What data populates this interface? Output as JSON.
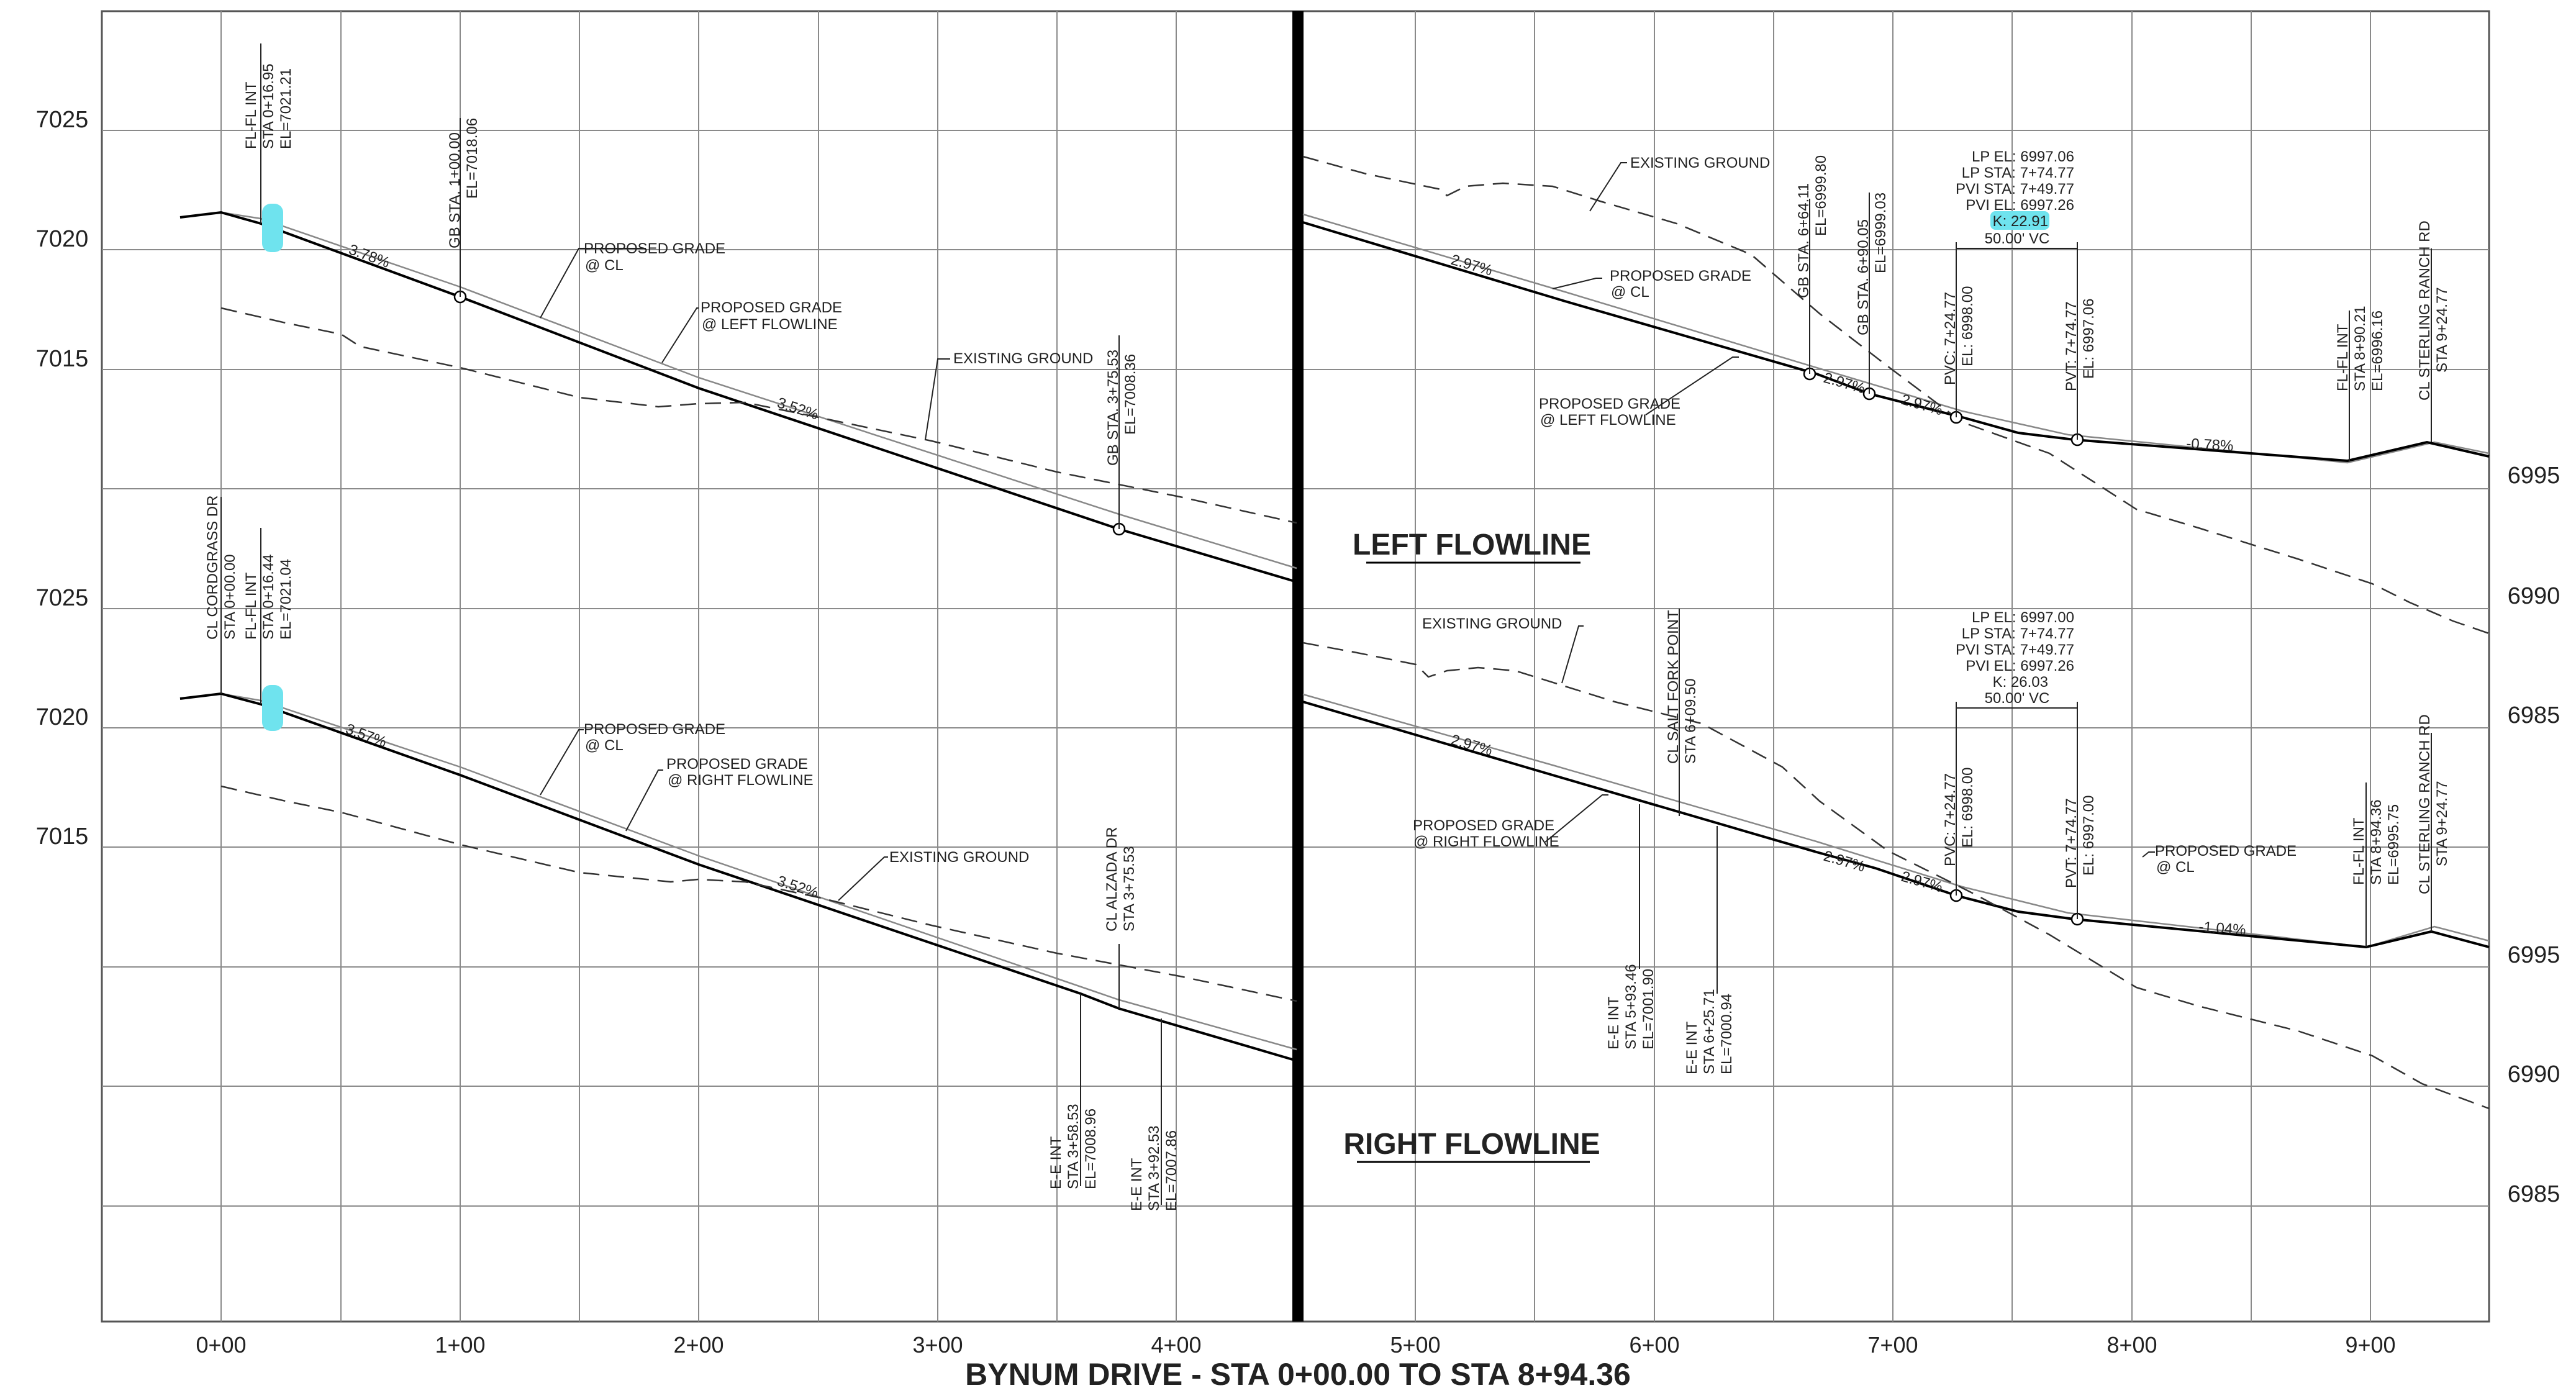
{
  "footer": {
    "title": "BYNUM DRIVE - STA 0+00.00 TO STA 8+94.36"
  },
  "axis": {
    "stations": [
      "0+00",
      "1+00",
      "2+00",
      "3+00",
      "4+00",
      "5+00",
      "6+00",
      "7+00",
      "8+00",
      "9+00"
    ],
    "left_elev_top": [
      "7025",
      "7020",
      "7015"
    ],
    "left_elev_bottom": [
      "7025",
      "7020",
      "7015"
    ],
    "right_elev": [
      "6995",
      "6990",
      "6985",
      "6995",
      "6990",
      "6985"
    ]
  },
  "panels": {
    "left_flowline_title": "LEFT FLOWLINE",
    "right_flowline_title": "RIGHT FLOWLINE"
  },
  "top_left": {
    "flfl_int": [
      "FL-FL INT",
      "STA 0+16.95",
      "EL=7021.21"
    ],
    "gb1": [
      "GB STA. 1+00.00",
      "EL=7018.06"
    ],
    "gb2": [
      "GB STA. 3+75.53",
      "EL=7008.36"
    ],
    "slope1": "3.78%",
    "slope2": "3.52%",
    "pg_cl": [
      "PROPOSED GRADE",
      "@ CL"
    ],
    "pg_left": [
      "PROPOSED GRADE",
      "@ LEFT FLOWLINE"
    ],
    "existing": "EXISTING GROUND"
  },
  "top_right": {
    "existing": "EXISTING GROUND",
    "slope1": "2.97%",
    "slope2": "2.97%",
    "slope3": "2.97%",
    "slope4": "-0.78%",
    "pg_cl": [
      "PROPOSED GRADE",
      "@ CL"
    ],
    "pg_left": [
      "PROPOSED GRADE",
      "@ LEFT FLOWLINE"
    ],
    "gb1": [
      "GB STA. 6+64.11",
      "EL=6999.80"
    ],
    "gb2": [
      "GB STA. 6+90.05",
      "EL=6999.03"
    ],
    "pvc": [
      "PVC: 7+24.77",
      "EL: 6998.00"
    ],
    "pvt": [
      "PVT: 7+74.77",
      "EL: 6997.06"
    ],
    "flfl": [
      "FL-FL INT",
      "STA 8+90.21",
      "EL=6996.16"
    ],
    "sterling": [
      "CL STERLING RANCH RD",
      "STA 9+24.77"
    ],
    "vc_info": [
      "LP EL: 6997.06",
      "LP STA: 7+74.77",
      "PVI STA: 7+49.77",
      "PVI EL: 6997.26"
    ],
    "k_value": "K: 22.91",
    "vc_len": "50.00' VC"
  },
  "bottom_left": {
    "cordgrass": [
      "CL CORDGRASS DR",
      "STA 0+00.00"
    ],
    "flfl_int": [
      "FL-FL INT",
      "STA 0+16.44",
      "EL=7021.04"
    ],
    "slope1": "3.57%",
    "slope2": "3.52%",
    "pg_cl": [
      "PROPOSED GRADE",
      "@ CL"
    ],
    "pg_right": [
      "PROPOSED GRADE",
      "@ RIGHT FLOWLINE"
    ],
    "existing": "EXISTING GROUND",
    "alzada": [
      "CL ALZADA DR",
      "STA 3+75.53"
    ],
    "ee1": [
      "E-E INT",
      "STA 3+58.53",
      "EL=7008.96"
    ],
    "ee2": [
      "E-E INT",
      "STA 3+92.53",
      "EL=7007.86"
    ]
  },
  "bottom_right": {
    "existing": "EXISTING GROUND",
    "slope1": "2.97%",
    "slope2": "2.97%",
    "slope3": "2.97%",
    "slope4": "-1.04%",
    "salt_fork": [
      "CL SALT FORK POINT",
      "STA 6+09.50"
    ],
    "pg_right": [
      "PROPOSED GRADE",
      "@ RIGHT FLOWLINE"
    ],
    "pg_cl": [
      "PROPOSED GRADE",
      "@ CL"
    ],
    "ee1": [
      "E-E INT",
      "STA 5+93.46",
      "EL=7001.90"
    ],
    "ee2": [
      "E-E INT",
      "STA 6+25.71",
      "EL=7000.94"
    ],
    "pvc": [
      "PVC: 7+24.77",
      "EL: 6998.00"
    ],
    "pvt": [
      "PVT: 7+74.77",
      "EL: 6997.00"
    ],
    "flfl": [
      "FL-FL INT",
      "STA 8+94.36",
      "EL=6995.75"
    ],
    "sterling": [
      "CL STERLING RANCH RD",
      "STA 9+24.77"
    ],
    "vc_info": [
      "LP EL: 6997.00",
      "LP STA: 7+74.77",
      "PVI STA: 7+49.77",
      "PVI EL: 6997.26"
    ],
    "k_value": "K: 26.03",
    "vc_len": "50.00' VC"
  },
  "colors": {
    "highlight": "#6fe3ee",
    "line": "#000000",
    "grid": "#8a8a8a"
  }
}
